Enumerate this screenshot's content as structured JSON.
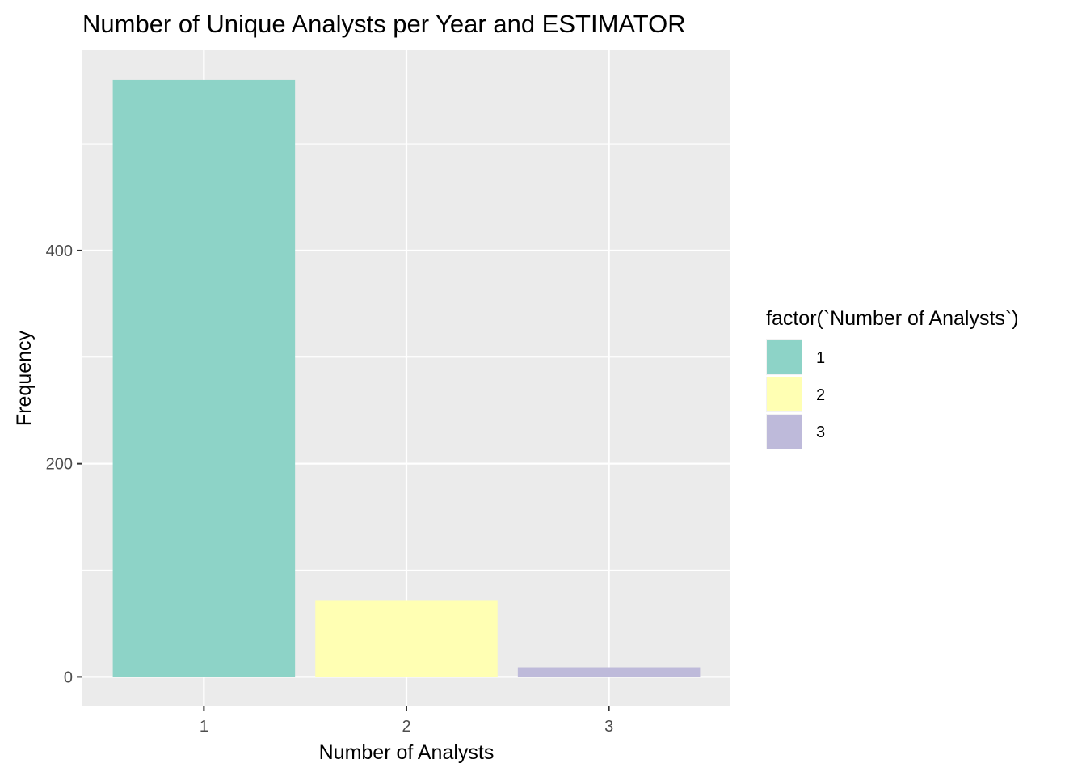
{
  "chart_data": {
    "type": "bar",
    "title": "Number of Unique Analysts per Year and ESTIMATOR",
    "xlabel": "Number of Analysts",
    "ylabel": "Frequency",
    "categories": [
      "1",
      "2",
      "3"
    ],
    "values": [
      560,
      72,
      9
    ],
    "ylim": [
      -27,
      588
    ],
    "yticks": [
      0,
      200,
      400
    ],
    "ytick_labels": [
      "0",
      "200",
      "400"
    ],
    "grid": true,
    "legend": {
      "title": "factor(`Number of Analysts`)",
      "placement": "right",
      "entries": [
        "1",
        "2",
        "3"
      ]
    },
    "colors": [
      "#8DD3C7",
      "#FFFFB3",
      "#BEBADA"
    ]
  }
}
